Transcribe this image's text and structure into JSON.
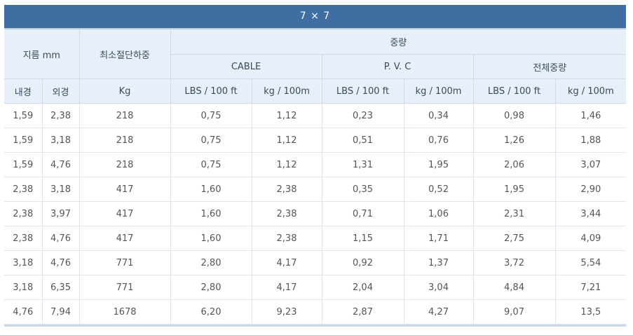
{
  "title": "7 × 7",
  "headers": {
    "diameter": "지름 mm",
    "min_breaking_load": "최소절단하중",
    "weight": "중량",
    "cable": "CABLE",
    "pvc": "P. V. C",
    "total_weight": "전체중량",
    "inner": "내경",
    "outer": "외경",
    "kg_unit": "Kg",
    "lbs": "LBS / 100 ft",
    "kg100": "kg / 100m"
  },
  "rows": [
    [
      "1,59",
      "2,38",
      "218",
      "0,75",
      "1,12",
      "0,23",
      "0,34",
      "0,98",
      "1,46"
    ],
    [
      "1,59",
      "3,18",
      "218",
      "0,75",
      "1,12",
      "0,51",
      "0,76",
      "1,26",
      "1,88"
    ],
    [
      "1,59",
      "4,76",
      "218",
      "0,75",
      "1,12",
      "1,31",
      "1,95",
      "2,06",
      "3,07"
    ],
    [
      "2,38",
      "3,18",
      "417",
      "1,60",
      "2,38",
      "0,35",
      "0,52",
      "1,95",
      "2,90"
    ],
    [
      "2,38",
      "3,97",
      "417",
      "1,60",
      "2,38",
      "0,71",
      "1,06",
      "2,31",
      "3,44"
    ],
    [
      "2,38",
      "4,76",
      "417",
      "1,60",
      "2,38",
      "1,15",
      "1,71",
      "2,75",
      "4,09"
    ],
    [
      "3,18",
      "4,76",
      "771",
      "2,80",
      "4,17",
      "0,92",
      "1,37",
      "3,72",
      "5,54"
    ],
    [
      "3,18",
      "6,35",
      "771",
      "2,80",
      "4,17",
      "2,04",
      "3,04",
      "4,84",
      "7,21"
    ],
    [
      "4,76",
      "7,94",
      "1678",
      "6,20",
      "9,23",
      "2,87",
      "4,27",
      "9,07",
      "13,5"
    ]
  ]
}
